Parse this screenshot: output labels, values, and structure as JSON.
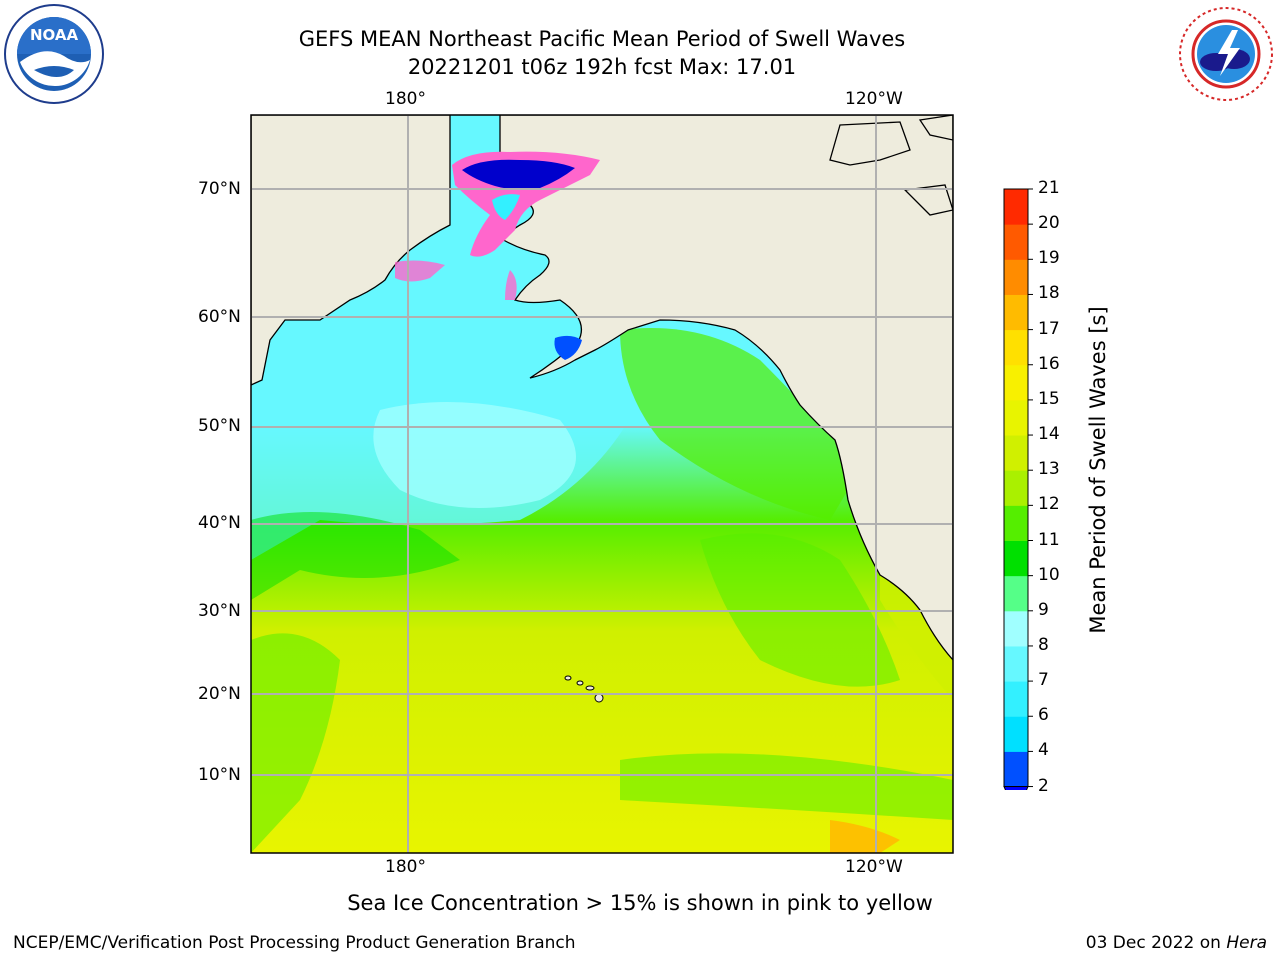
{
  "title": {
    "line1": "GEFS MEAN Northeast Pacific Mean Period of Swell Waves",
    "line2": "20221201 t06z 192h fcst   Max: 17.01"
  },
  "logos": {
    "left": {
      "text": "NOAA",
      "ring_text": "NATIONAL OCEANIC AND ATMOSPHERIC ADMINISTRATION · U.S. DEPARTMENT OF COMMERCE",
      "color": "#1e3c8c"
    },
    "right": {
      "ring_text": "NATIONAL WEATHER SERVICE",
      "color": "#d62828"
    }
  },
  "map": {
    "lon_labels_top": [
      "180°",
      "120°W"
    ],
    "lon_labels_bottom": [
      "180°",
      "120°W"
    ],
    "lat_labels": [
      "70°N",
      "60°N",
      "50°N",
      "40°N",
      "30°N",
      "20°N",
      "10°N"
    ],
    "land_color": "#eeecdd",
    "grid_color": "#b0b0b0"
  },
  "colorbar": {
    "label": "Mean Period of Swell Waves [s]",
    "ticks": [
      "2",
      "4",
      "6",
      "7",
      "8",
      "9",
      "10",
      "11",
      "12",
      "13",
      "14",
      "15",
      "16",
      "17",
      "18",
      "19",
      "20",
      "21"
    ],
    "colors": [
      "#0050ff",
      "#00e0ff",
      "#33f0ff",
      "#66f8ff",
      "#a0ffff",
      "#55ff88",
      "#00e000",
      "#55ee00",
      "#aaf000",
      "#d0f000",
      "#e8f400",
      "#f8f000",
      "#ffe000",
      "#ffbb00",
      "#ff8c00",
      "#ff5a00",
      "#ff2a00"
    ],
    "extend_color": "#0000ff"
  },
  "caption": "Sea Ice Concentration > 15% is shown in pink to yellow",
  "footer": {
    "left": "NCEP/EMC/Verification Post Processing Product Generation Branch",
    "right_prefix": "03 Dec 2022 on ",
    "right_host": "Hera"
  }
}
